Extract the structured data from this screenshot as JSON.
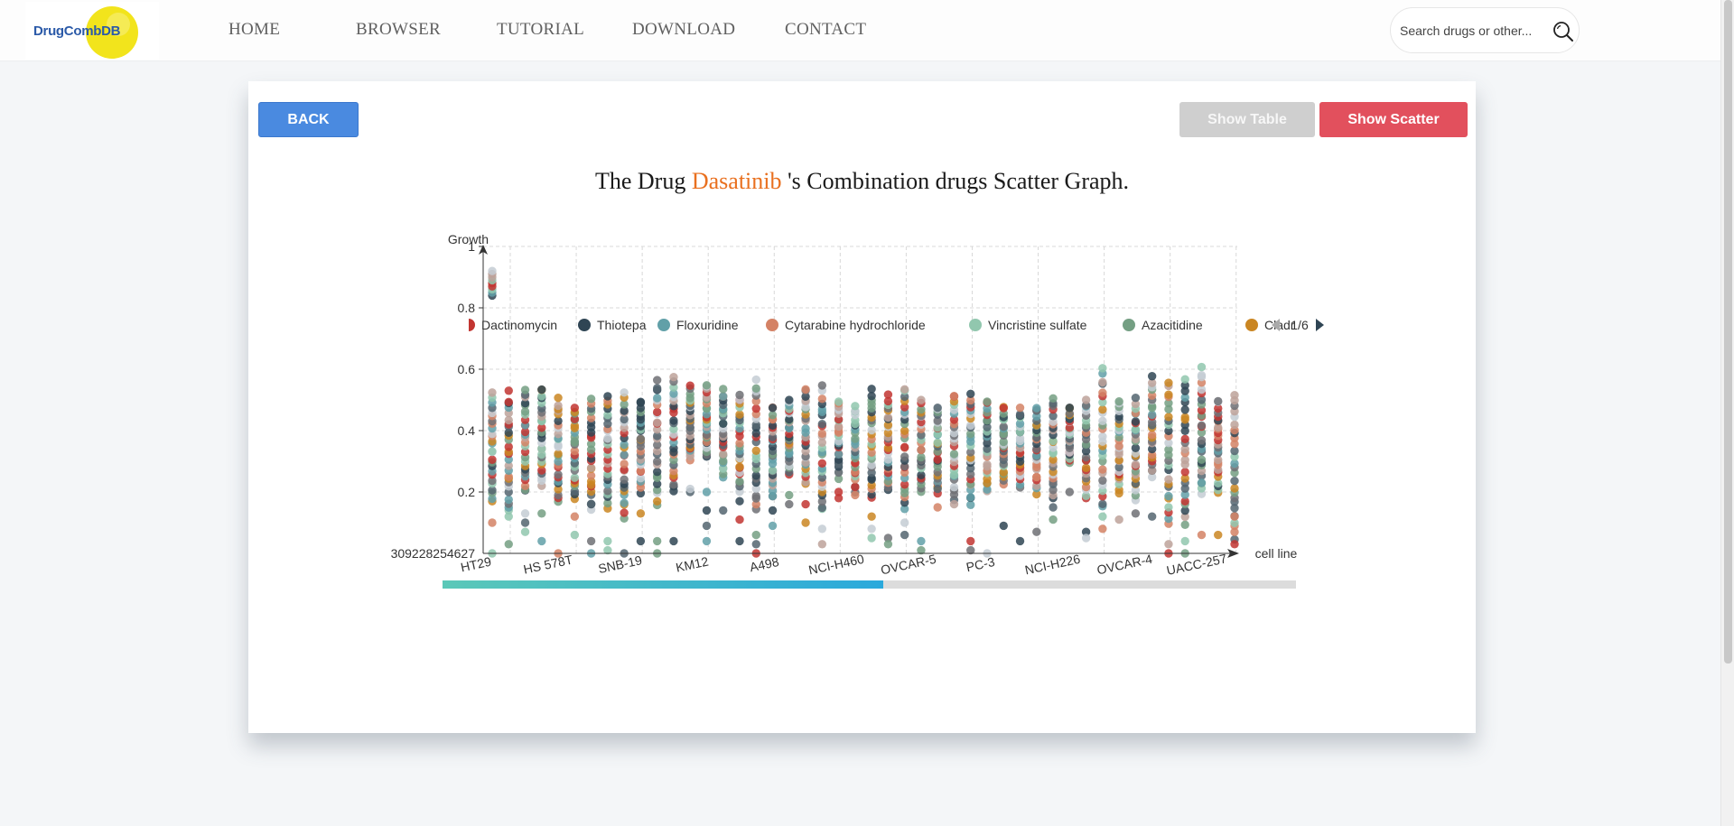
{
  "header": {
    "logo_text": "DrugCombDB",
    "nav": [
      {
        "label": "HOME"
      },
      {
        "label": "BROWSER"
      },
      {
        "label": "TUTORIAL"
      },
      {
        "label": "DOWNLOAD"
      },
      {
        "label": "CONTACT"
      }
    ],
    "search_placeholder": "Search drugs or other..."
  },
  "page": {
    "back_label": "BACK",
    "show_table_label": "Show Table",
    "show_scatter_label": "Show Scatter",
    "title_prefix": "The Drug ",
    "drug_name": "Dasatinib",
    "title_suffix": " 's Combination drugs Scatter Graph."
  },
  "chart_data": {
    "type": "scatter",
    "title": "",
    "xlabel": "cell line",
    "ylabel": "Growth",
    "ylim": [
      0.0,
      1.0
    ],
    "y_ticks": [
      "1",
      "0.8",
      "0.6",
      "0.4",
      "0.2"
    ],
    "y_min_label": "309228254627",
    "legend_page": "1/6",
    "legend": [
      {
        "name": "Dactinomycin",
        "color": "#c23531"
      },
      {
        "name": "Thiotepa",
        "color": "#2f4554"
      },
      {
        "name": "Floxuridine",
        "color": "#61a0a8"
      },
      {
        "name": "Cytarabine hydrochloride",
        "color": "#d48265"
      },
      {
        "name": "Vincristine sulfate",
        "color": "#91c7ae"
      },
      {
        "name": "Azacitidine",
        "color": "#749f83"
      },
      {
        "name": "Cladr",
        "color": "#ca8622"
      }
    ],
    "extra_colors": [
      "#bda29a",
      "#6e7074",
      "#546570",
      "#c4ccd3"
    ],
    "x_labels": [
      "HT29",
      "HS 578T",
      "SNB-19",
      "KM12",
      "A498",
      "NCI-H460",
      "OVCAR-5",
      "PC-3",
      "NCI-H226",
      "OVCAR-4",
      "UACC-257"
    ],
    "columns": [
      {
        "range": [
          0.17,
          0.52
        ],
        "outliers": [
          0.84,
          0.85,
          0.86,
          0.87,
          0.88,
          0.89,
          0.9,
          0.91,
          0.92,
          0.1,
          0.0
        ]
      },
      {
        "range": [
          0.12,
          0.5
        ],
        "outliers": [
          0.53,
          0.03
        ]
      },
      {
        "range": [
          0.2,
          0.53
        ],
        "outliers": [
          0.13,
          0.1,
          0.07
        ]
      },
      {
        "range": [
          0.22,
          0.54
        ],
        "outliers": [
          0.13,
          0.04
        ]
      },
      {
        "range": [
          0.17,
          0.5
        ],
        "outliers": [
          0.0
        ]
      },
      {
        "range": [
          0.18,
          0.48
        ],
        "outliers": [
          0.12,
          0.06
        ]
      },
      {
        "range": [
          0.14,
          0.5
        ],
        "outliers": [
          0.0,
          0.04
        ]
      },
      {
        "range": [
          0.15,
          0.51
        ],
        "outliers": [
          0.04,
          0.01
        ]
      },
      {
        "range": [
          0.12,
          0.52
        ],
        "outliers": [
          0.0
        ]
      },
      {
        "range": [
          0.2,
          0.5
        ],
        "outliers": [
          0.04,
          0.13
        ]
      },
      {
        "range": [
          0.16,
          0.56
        ],
        "outliers": [
          0.04,
          0.0
        ]
      },
      {
        "range": [
          0.2,
          0.57
        ],
        "outliers": [
          0.04
        ]
      },
      {
        "range": [
          0.3,
          0.54
        ],
        "outliers": [
          0.2,
          0.21
        ]
      },
      {
        "range": [
          0.32,
          0.55
        ],
        "outliers": [
          0.2,
          0.14,
          0.09,
          0.04
        ]
      },
      {
        "range": [
          0.25,
          0.53
        ],
        "outliers": [
          0.14
        ]
      },
      {
        "range": [
          0.2,
          0.52
        ],
        "outliers": [
          0.17,
          0.11,
          0.04
        ]
      },
      {
        "range": [
          0.14,
          0.56
        ],
        "outliers": [
          0.06,
          0.0,
          0.03
        ]
      },
      {
        "range": [
          0.18,
          0.48
        ],
        "outliers": [
          0.14,
          0.09
        ]
      },
      {
        "range": [
          0.26,
          0.5
        ],
        "outliers": [
          0.19,
          0.16
        ]
      },
      {
        "range": [
          0.22,
          0.54
        ],
        "outliers": [
          0.16,
          0.1
        ]
      },
      {
        "range": [
          0.14,
          0.54
        ],
        "outliers": [
          0.08,
          0.03
        ]
      },
      {
        "range": [
          0.25,
          0.5
        ],
        "outliers": [
          0.2,
          0.18
        ]
      },
      {
        "range": [
          0.2,
          0.48
        ],
        "outliers": [
          0.19
        ]
      },
      {
        "range": [
          0.18,
          0.53
        ],
        "outliers": [
          0.12,
          0.08,
          0.05
        ]
      },
      {
        "range": [
          0.2,
          0.51
        ],
        "outliers": [
          0.05,
          0.03
        ]
      },
      {
        "range": [
          0.15,
          0.54
        ],
        "outliers": [
          0.1,
          0.06
        ]
      },
      {
        "range": [
          0.2,
          0.5
        ],
        "outliers": [
          0.04,
          0.01
        ]
      },
      {
        "range": [
          0.2,
          0.48
        ],
        "outliers": [
          0.21,
          0.15
        ]
      },
      {
        "range": [
          0.18,
          0.52
        ],
        "outliers": [
          0.16
        ]
      },
      {
        "range": [
          0.16,
          0.52
        ],
        "outliers": [
          0.04,
          0.01
        ]
      },
      {
        "range": [
          0.2,
          0.5
        ],
        "outliers": [
          0.0
        ]
      },
      {
        "range": [
          0.23,
          0.48
        ],
        "outliers": [
          0.09
        ]
      },
      {
        "range": [
          0.22,
          0.47
        ],
        "outliers": [
          0.04
        ]
      },
      {
        "range": [
          0.2,
          0.48
        ],
        "outliers": [
          0.07
        ]
      },
      {
        "range": [
          0.18,
          0.5
        ],
        "outliers": [
          0.15,
          0.11
        ]
      },
      {
        "range": [
          0.3,
          0.48
        ],
        "outliers": [
          0.2
        ]
      },
      {
        "range": [
          0.18,
          0.5
        ],
        "outliers": [
          0.07,
          0.05
        ]
      },
      {
        "range": [
          0.15,
          0.6
        ],
        "outliers": [
          0.08,
          0.12
        ]
      },
      {
        "range": [
          0.2,
          0.5
        ],
        "outliers": [
          0.11
        ]
      },
      {
        "range": [
          0.18,
          0.5
        ],
        "outliers": [
          0.13
        ]
      },
      {
        "range": [
          0.25,
          0.57
        ],
        "outliers": [
          0.12
        ]
      },
      {
        "range": [
          0.1,
          0.56
        ],
        "outliers": [
          0.03,
          0.0
        ]
      },
      {
        "range": [
          0.1,
          0.56
        ],
        "outliers": [
          0.04,
          0.0
        ]
      },
      {
        "range": [
          0.2,
          0.6
        ],
        "outliers": [
          0.06,
          0.23
        ]
      },
      {
        "range": [
          0.2,
          0.5
        ],
        "outliers": [
          0.06
        ]
      },
      {
        "range": [
          0.05,
          0.52
        ],
        "outliers": [
          0.12,
          0.03
        ]
      }
    ]
  }
}
